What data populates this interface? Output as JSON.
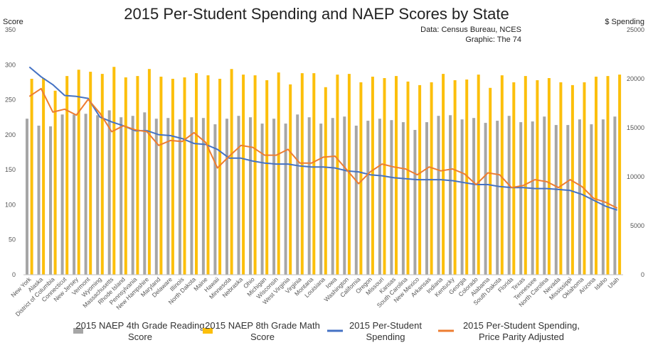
{
  "chart_data": {
    "type": "bar",
    "title": "2015 Per-Student Spending and NAEP Scores by State",
    "source_line1": "Data: Census Bureau, NCES",
    "source_line2": "Graphic: The 74",
    "ylabel_left": "Score",
    "ylabel_right": "$ Spending",
    "ylim_left": [
      0,
      350
    ],
    "ylim_right": [
      0,
      25000
    ],
    "yticks_left": [
      "0",
      "50",
      "100",
      "150",
      "200",
      "250",
      "300",
      "350"
    ],
    "yticks_right": [
      "0",
      "5000",
      "10000",
      "15000",
      "20000",
      "25000"
    ],
    "grid": false,
    "legend_position": "bottom",
    "categories": [
      "New York",
      "Alaska",
      "District of Columbia",
      "Connecticut",
      "New Jersey",
      "Vermont",
      "Wyoming",
      "Massachusetts",
      "Rhode Island",
      "Pennsylvania",
      "New Hampshire",
      "Maryland",
      "Delaware",
      "Illinois",
      "North Dakota",
      "Maine",
      "Hawaii",
      "Minnesota",
      "Nebraska",
      "Ohio",
      "Michigan",
      "Wisconsin",
      "West Virginia",
      "Virginia",
      "Montana",
      "Louisiana",
      "Iowa",
      "Washington",
      "California",
      "Oregon",
      "Missouri",
      "Kansas",
      "South Carolina",
      "New Mexico",
      "Arkansas",
      "Indiana",
      "Kentucky",
      "Georgia",
      "Colorado",
      "Alabama",
      "South Dakota",
      "Florida",
      "Texas",
      "Tennessee",
      "North Carolina",
      "Nevada",
      "Mississippi",
      "Oklahoma",
      "Arizona",
      "Idaho",
      "Utah"
    ],
    "series": [
      {
        "name": "2015 NAEP 4th Grade Reading Score",
        "kind": "bar",
        "axis": "left",
        "color": "#a6a6a6",
        "values": [
          223,
          213,
          212,
          229,
          229,
          230,
          228,
          235,
          225,
          227,
          232,
          223,
          224,
          222,
          225,
          224,
          215,
          223,
          227,
          225,
          216,
          223,
          216,
          229,
          225,
          216,
          224,
          226,
          213,
          220,
          223,
          221,
          218,
          207,
          218,
          227,
          228,
          222,
          224,
          217,
          220,
          227,
          218,
          219,
          226,
          214,
          214,
          222,
          215,
          222,
          226
        ]
      },
      {
        "name": "2015 NAEP 8th Grade Math Score",
        "kind": "bar",
        "axis": "left",
        "color": "#fcbf0b",
        "values": [
          280,
          281,
          263,
          284,
          293,
          290,
          287,
          297,
          282,
          284,
          294,
          283,
          280,
          282,
          288,
          285,
          280,
          294,
          286,
          285,
          278,
          289,
          272,
          288,
          288,
          268,
          286,
          287,
          275,
          283,
          281,
          284,
          276,
          271,
          275,
          287,
          278,
          279,
          286,
          267,
          285,
          275,
          284,
          278,
          281,
          275,
          271,
          275,
          283,
          284,
          286
        ]
      },
      {
        "name": "2015 Per-Student Spending",
        "kind": "line",
        "axis": "right",
        "color": "#4472c4",
        "values": [
          21200,
          20200,
          19400,
          18300,
          18200,
          18000,
          16100,
          15600,
          15200,
          14700,
          14700,
          14300,
          14200,
          13900,
          13400,
          13300,
          12800,
          11900,
          11900,
          11600,
          11400,
          11300,
          11300,
          11100,
          11000,
          11000,
          10900,
          10600,
          10500,
          10200,
          10100,
          9900,
          9800,
          9700,
          9700,
          9700,
          9600,
          9400,
          9200,
          9200,
          9000,
          8900,
          8900,
          8800,
          8800,
          8700,
          8600,
          8200,
          7600,
          7000,
          6600
        ]
      },
      {
        "name": "2015 Per-Student Spending, Price Parity Adjusted",
        "kind": "line",
        "axis": "right",
        "color": "#ed7d31",
        "values": [
          18200,
          19000,
          16600,
          16900,
          16300,
          17900,
          16500,
          14600,
          15200,
          14800,
          14600,
          13200,
          13700,
          13600,
          14500,
          13500,
          10900,
          12100,
          13200,
          13000,
          12200,
          12200,
          12800,
          11400,
          11400,
          12000,
          12100,
          10700,
          9300,
          10500,
          11300,
          11000,
          10800,
          10200,
          11000,
          10600,
          10800,
          10300,
          9200,
          10400,
          10200,
          8900,
          9100,
          9700,
          9500,
          8900,
          9700,
          9000,
          7800,
          7400,
          6800
        ]
      }
    ]
  }
}
